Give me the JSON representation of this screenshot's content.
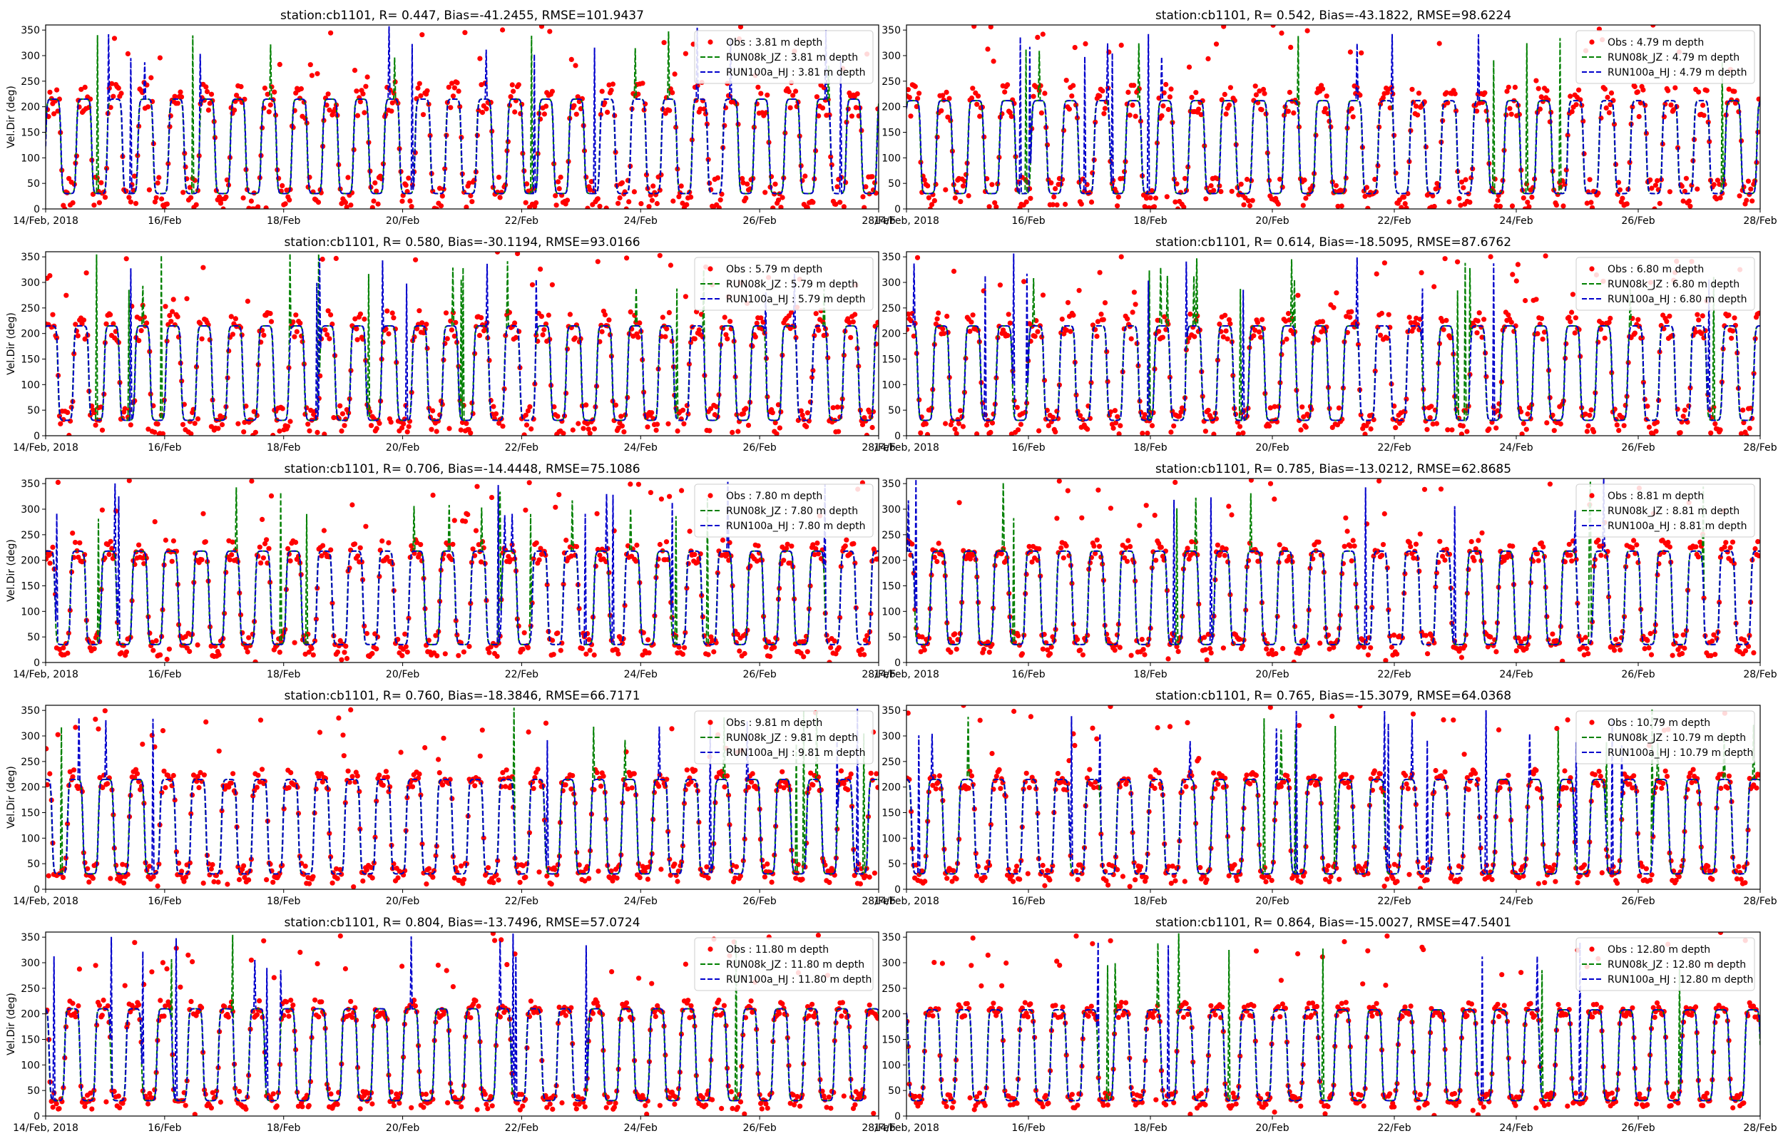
{
  "colors": {
    "obs": "#ff0000",
    "run08k": "#008000",
    "run100a": "#0000cc",
    "axis": "#000000",
    "legend_border": "#cccccc"
  },
  "chart_data": [
    {
      "type": "scatter+line",
      "title": "station:cb1101, R= 0.447, Bias=-41.2455, RMSE=101.9437",
      "ylabel": "Vel.Dir (deg)",
      "xlim": [
        "2018-02-14",
        "2018-02-28"
      ],
      "ylim": [
        0,
        360
      ],
      "xtick_labels": [
        "14/Feb, 2018",
        "16/Feb",
        "18/Feb",
        "20/Feb",
        "22/Feb",
        "24/Feb",
        "26/Feb",
        "28/Feb"
      ],
      "ytick_labels": [
        "0",
        "50",
        "100",
        "150",
        "200",
        "250",
        "300",
        "350"
      ],
      "legend": [
        "Obs : 3.81 m depth",
        "RUN08k_JZ : 3.81 m depth",
        "RUN100a_HJ : 3.81 m depth"
      ],
      "legend_position": "top-right",
      "depth_m": 3.81,
      "pattern": {
        "ebb_deg": 215,
        "flood_deg": 30,
        "obs_noise": 34
      }
    },
    {
      "type": "scatter+line",
      "title": "station:cb1101, R= 0.542, Bias=-43.1822, RMSE=98.6224",
      "ylabel": "",
      "xlim": [
        "2018-02-14",
        "2018-02-28"
      ],
      "ylim": [
        0,
        360
      ],
      "xtick_labels": [
        "14/Feb, 2018",
        "16/Feb",
        "18/Feb",
        "20/Feb",
        "22/Feb",
        "24/Feb",
        "26/Feb",
        "28/Feb"
      ],
      "ytick_labels": [
        "0",
        "50",
        "100",
        "150",
        "200",
        "250",
        "300",
        "350"
      ],
      "legend": [
        "Obs : 4.79 m depth",
        "RUN08k_JZ : 4.79 m depth",
        "RUN100a_HJ : 4.79 m depth"
      ],
      "legend_position": "top-right",
      "depth_m": 4.79,
      "pattern": {
        "ebb_deg": 212,
        "flood_deg": 30,
        "obs_noise": 32
      }
    },
    {
      "type": "scatter+line",
      "title": "station:cb1101, R= 0.580, Bias=-30.1194, RMSE=93.0166",
      "ylabel": "Vel.Dir (deg)",
      "xlim": [
        "2018-02-14",
        "2018-02-28"
      ],
      "ylim": [
        0,
        360
      ],
      "xtick_labels": [
        "14/Feb, 2018",
        "16/Feb",
        "18/Feb",
        "20/Feb",
        "22/Feb",
        "24/Feb",
        "26/Feb",
        "28/Feb"
      ],
      "ytick_labels": [
        "0",
        "50",
        "100",
        "150",
        "200",
        "250",
        "300",
        "350"
      ],
      "legend": [
        "Obs : 5.79 m depth",
        "RUN08k_JZ : 5.79 m depth",
        "RUN100a_HJ : 5.79 m depth"
      ],
      "legend_position": "top-right",
      "depth_m": 5.79,
      "pattern": {
        "ebb_deg": 215,
        "flood_deg": 30,
        "obs_noise": 30
      }
    },
    {
      "type": "scatter+line",
      "title": "station:cb1101, R= 0.614, Bias=-18.5095, RMSE=87.6762",
      "ylabel": "",
      "xlim": [
        "2018-02-14",
        "2018-02-28"
      ],
      "ylim": [
        0,
        360
      ],
      "xtick_labels": [
        "14/Feb, 2018",
        "16/Feb",
        "18/Feb",
        "20/Feb",
        "22/Feb",
        "24/Feb",
        "26/Feb",
        "28/Feb"
      ],
      "ytick_labels": [
        "0",
        "50",
        "100",
        "150",
        "200",
        "250",
        "300",
        "350"
      ],
      "legend": [
        "Obs : 6.80 m depth",
        "RUN08k_JZ : 6.80 m depth",
        "RUN100a_HJ : 6.80 m depth"
      ],
      "legend_position": "top-right",
      "depth_m": 6.8,
      "pattern": {
        "ebb_deg": 215,
        "flood_deg": 30,
        "obs_noise": 28
      }
    },
    {
      "type": "scatter+line",
      "title": "station:cb1101, R= 0.706, Bias=-14.4448, RMSE=75.1086",
      "ylabel": "Vel.Dir (deg)",
      "xlim": [
        "2018-02-14",
        "2018-02-28"
      ],
      "ylim": [
        0,
        360
      ],
      "xtick_labels": [
        "14/Feb, 2018",
        "16/Feb",
        "18/Feb",
        "20/Feb",
        "22/Feb",
        "24/Feb",
        "26/Feb",
        "28/Feb"
      ],
      "ytick_labels": [
        "0",
        "50",
        "100",
        "150",
        "200",
        "250",
        "300",
        "350"
      ],
      "legend": [
        "Obs : 7.80 m depth",
        "RUN08k_JZ : 7.80 m depth",
        "RUN100a_HJ : 7.80 m depth"
      ],
      "legend_position": "top-right",
      "depth_m": 7.8,
      "pattern": {
        "ebb_deg": 218,
        "flood_deg": 35,
        "obs_noise": 24
      }
    },
    {
      "type": "scatter+line",
      "title": "station:cb1101, R= 0.785, Bias=-13.0212, RMSE=62.8685",
      "ylabel": "",
      "xlim": [
        "2018-02-14",
        "2018-02-28"
      ],
      "ylim": [
        0,
        360
      ],
      "xtick_labels": [
        "14/Feb, 2018",
        "16/Feb",
        "18/Feb",
        "20/Feb",
        "22/Feb",
        "24/Feb",
        "26/Feb",
        "28/Feb"
      ],
      "ytick_labels": [
        "0",
        "50",
        "100",
        "150",
        "200",
        "250",
        "300",
        "350"
      ],
      "legend": [
        "Obs : 8.81 m depth",
        "RUN08k_JZ : 8.81 m depth",
        "RUN100a_HJ : 8.81 m depth"
      ],
      "legend_position": "top-right",
      "depth_m": 8.81,
      "pattern": {
        "ebb_deg": 218,
        "flood_deg": 35,
        "obs_noise": 22
      }
    },
    {
      "type": "scatter+line",
      "title": "station:cb1101, R= 0.760, Bias=-18.3846, RMSE=66.7171",
      "ylabel": "Vel.Dir (deg)",
      "xlim": [
        "2018-02-14",
        "2018-02-28"
      ],
      "ylim": [
        0,
        360
      ],
      "xtick_labels": [
        "14/Feb, 2018",
        "16/Feb",
        "18/Feb",
        "20/Feb",
        "22/Feb",
        "24/Feb",
        "26/Feb",
        "28/Feb"
      ],
      "ytick_labels": [
        "0",
        "50",
        "100",
        "150",
        "200",
        "250",
        "300",
        "350"
      ],
      "legend": [
        "Obs : 9.81 m depth",
        "RUN08k_JZ : 9.81 m depth",
        "RUN100a_HJ : 9.81 m depth"
      ],
      "legend_position": "top-right",
      "depth_m": 9.81,
      "pattern": {
        "ebb_deg": 215,
        "flood_deg": 30,
        "obs_noise": 20
      }
    },
    {
      "type": "scatter+line",
      "title": "station:cb1101, R= 0.765, Bias=-15.3079, RMSE=64.0368",
      "ylabel": "",
      "xlim": [
        "2018-02-14",
        "2018-02-28"
      ],
      "ylim": [
        0,
        360
      ],
      "xtick_labels": [
        "14/Feb, 2018",
        "16/Feb",
        "18/Feb",
        "20/Feb",
        "22/Feb",
        "24/Feb",
        "26/Feb",
        "28/Feb"
      ],
      "ytick_labels": [
        "0",
        "50",
        "100",
        "150",
        "200",
        "250",
        "300",
        "350"
      ],
      "legend": [
        "Obs : 10.79 m depth",
        "RUN08k_JZ : 10.79 m depth",
        "RUN100a_HJ : 10.79 m depth"
      ],
      "legend_position": "top-right",
      "depth_m": 10.79,
      "pattern": {
        "ebb_deg": 215,
        "flood_deg": 30,
        "obs_noise": 20
      }
    },
    {
      "type": "scatter+line",
      "title": "station:cb1101, R= 0.804, Bias=-13.7496, RMSE=57.0724",
      "ylabel": "Vel.Dir (deg)",
      "xlim": [
        "2018-02-14",
        "2018-02-28"
      ],
      "ylim": [
        0,
        360
      ],
      "xtick_labels": [
        "14/Feb, 2018",
        "16/Feb",
        "18/Feb",
        "20/Feb",
        "22/Feb",
        "24/Feb",
        "26/Feb",
        "28/Feb"
      ],
      "ytick_labels": [
        "0",
        "50",
        "100",
        "150",
        "200",
        "250",
        "300",
        "350"
      ],
      "legend": [
        "Obs : 11.80 m depth",
        "RUN08k_JZ : 11.80 m depth",
        "RUN100a_HJ : 11.80 m depth"
      ],
      "legend_position": "top-right",
      "depth_m": 11.8,
      "pattern": {
        "ebb_deg": 210,
        "flood_deg": 30,
        "obs_noise": 18
      }
    },
    {
      "type": "scatter+line",
      "title": "station:cb1101, R= 0.864, Bias=-15.0027, RMSE=47.5401",
      "ylabel": "",
      "xlim": [
        "2018-02-14",
        "2018-02-28"
      ],
      "ylim": [
        0,
        360
      ],
      "xtick_labels": [
        "14/Feb, 2018",
        "16/Feb",
        "18/Feb",
        "20/Feb",
        "22/Feb",
        "24/Feb",
        "26/Feb",
        "28/Feb"
      ],
      "ytick_labels": [
        "0",
        "50",
        "100",
        "150",
        "200",
        "250",
        "300",
        "350"
      ],
      "legend": [
        "Obs : 12.80 m depth",
        "RUN08k_JZ : 12.80 m depth",
        "RUN100a_HJ : 12.80 m depth"
      ],
      "legend_position": "top-right",
      "depth_m": 12.8,
      "pattern": {
        "ebb_deg": 208,
        "flood_deg": 30,
        "obs_noise": 15
      }
    }
  ]
}
